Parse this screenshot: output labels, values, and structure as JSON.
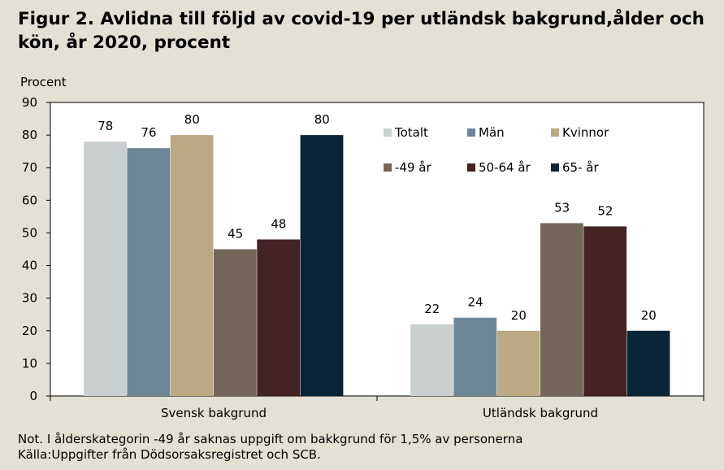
{
  "title": "Figur 2. Avlidna till följd av covid-19 per utländsk bakgrund,ålder och kön, år 2020, procent",
  "note": "Not. I ålderskategorin -49 år saknas uppgift om bakkgrund för 1,5% av personerna",
  "source": "Källa:Uppgifter från Dödsorsaksregistret och SCB.",
  "colors": {
    "background": "#e3e0d4",
    "plot_area": "#ffffff",
    "Totalt": "#c9cfcf",
    "Män": "#6e8797",
    "Kvinnor": "#bba984",
    "-49 år": "#75665a",
    "50-64 år": "#432323",
    "65- år": "#0b2538"
  },
  "chart_data": {
    "type": "bar",
    "ylabel": "Procent",
    "ylim": [
      0,
      90
    ],
    "yticks": [
      0,
      10,
      20,
      30,
      40,
      50,
      60,
      70,
      80,
      90
    ],
    "grid": false,
    "legend": "top-right inside plot, two rows",
    "categories": [
      "Svensk bakgrund",
      "Utländsk bakgrund"
    ],
    "series": [
      {
        "name": "Totalt",
        "values": [
          78,
          22
        ]
      },
      {
        "name": "Män",
        "values": [
          76,
          24
        ]
      },
      {
        "name": "Kvinnor",
        "values": [
          80,
          20
        ]
      },
      {
        "name": "-49 år",
        "values": [
          45,
          53
        ]
      },
      {
        "name": "50-64 år",
        "values": [
          48,
          52
        ]
      },
      {
        "name": "65- år",
        "values": [
          80,
          20
        ]
      }
    ]
  }
}
